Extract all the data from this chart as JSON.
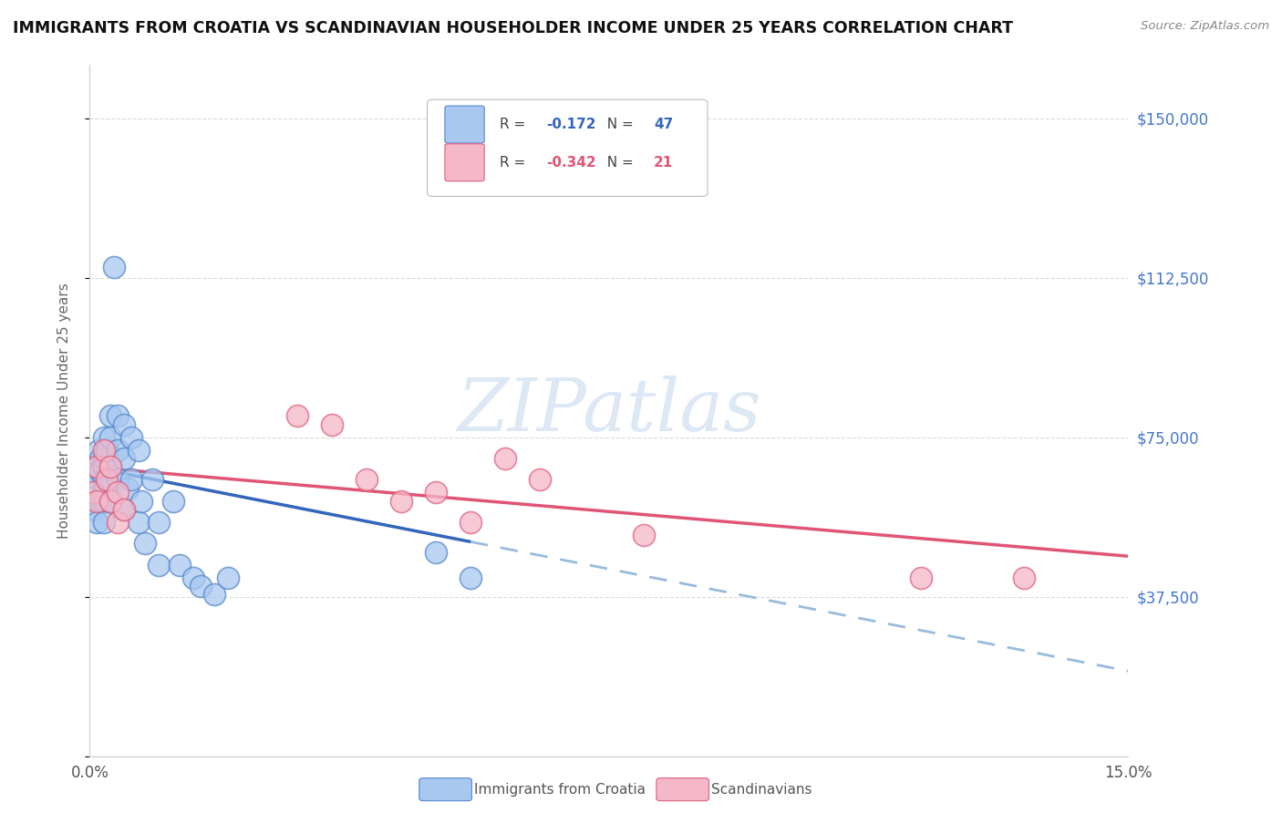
{
  "title": "IMMIGRANTS FROM CROATIA VS SCANDINAVIAN HOUSEHOLDER INCOME UNDER 25 YEARS CORRELATION CHART",
  "source": "Source: ZipAtlas.com",
  "ylabel": "Householder Income Under 25 years",
  "legend_croatia": "Immigrants from Croatia",
  "legend_scandinavian": "Scandinavians",
  "r_croatia": "-0.172",
  "n_croatia": "47",
  "r_scandinavian": "-0.342",
  "n_scandinavian": "21",
  "yticks": [
    0,
    37500,
    75000,
    112500,
    150000
  ],
  "ytick_labels": [
    "",
    "$37,500",
    "$75,000",
    "$112,500",
    "$150,000"
  ],
  "xlim": [
    0.0,
    0.15
  ],
  "ylim": [
    0,
    162500
  ],
  "color_croatia": "#a8c8f0",
  "color_scandinavian": "#f4b8c8",
  "color_croatia_edge": "#5588cc",
  "color_scandinavian_edge": "#e06080",
  "color_croatia_line": "#3366bb",
  "color_scandinavian_line": "#e05575",
  "color_croatia_dashed": "#99bbdd",
  "color_yaxis": "#4477cc",
  "watermark_color": "#dde8f5",
  "background_color": "#ffffff",
  "grid_color": "#cccccc",
  "croatia_x": [
    0.0005,
    0.0008,
    0.001,
    0.001,
    0.0012,
    0.0012,
    0.0015,
    0.0015,
    0.0015,
    0.002,
    0.002,
    0.002,
    0.002,
    0.002,
    0.002,
    0.0022,
    0.0025,
    0.0025,
    0.003,
    0.003,
    0.003,
    0.003,
    0.0035,
    0.004,
    0.004,
    0.004,
    0.005,
    0.005,
    0.005,
    0.0055,
    0.006,
    0.006,
    0.007,
    0.007,
    0.0075,
    0.008,
    0.009,
    0.01,
    0.01,
    0.012,
    0.013,
    0.015,
    0.016,
    0.018,
    0.02,
    0.05,
    0.055
  ],
  "croatia_y": [
    63000,
    58000,
    68000,
    55000,
    72000,
    65000,
    70000,
    67000,
    60000,
    75000,
    70000,
    68000,
    65000,
    60000,
    55000,
    63000,
    72000,
    65000,
    80000,
    75000,
    68000,
    60000,
    115000,
    80000,
    72000,
    65000,
    78000,
    70000,
    58000,
    63000,
    75000,
    65000,
    55000,
    72000,
    60000,
    50000,
    65000,
    55000,
    45000,
    60000,
    45000,
    42000,
    40000,
    38000,
    42000,
    48000,
    42000
  ],
  "scandinavian_x": [
    0.0005,
    0.001,
    0.001,
    0.002,
    0.0025,
    0.003,
    0.003,
    0.004,
    0.004,
    0.005,
    0.03,
    0.035,
    0.04,
    0.045,
    0.05,
    0.055,
    0.06,
    0.065,
    0.08,
    0.12,
    0.135
  ],
  "scandinavian_y": [
    62000,
    68000,
    60000,
    72000,
    65000,
    68000,
    60000,
    62000,
    55000,
    58000,
    80000,
    78000,
    65000,
    60000,
    62000,
    55000,
    70000,
    65000,
    52000,
    42000,
    42000
  ],
  "line_croatia_x0": 0.0,
  "line_croatia_y0": 68000,
  "line_croatia_x1": 0.15,
  "line_croatia_y1": 20000,
  "line_croatia_solid_end": 0.055,
  "line_scand_x0": 0.0,
  "line_scand_y0": 68000,
  "line_scand_x1": 0.15,
  "line_scand_y1": 47000
}
